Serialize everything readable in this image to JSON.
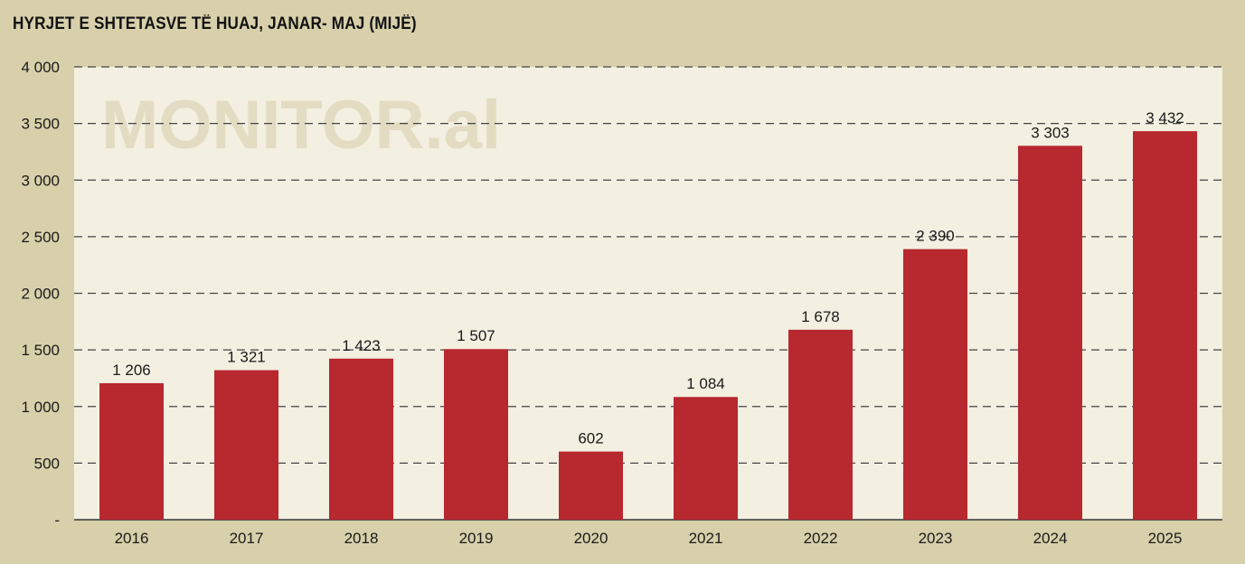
{
  "chart_data": {
    "type": "bar",
    "title": "HYRJET E SHTETASVE TË HUAJ, JANAR- MAJ (MIJË)",
    "watermark": "MONITOR.al",
    "categories": [
      "2016",
      "2017",
      "2018",
      "2019",
      "2020",
      "2021",
      "2022",
      "2023",
      "2024",
      "2025"
    ],
    "values": [
      1206,
      1321,
      1423,
      1507,
      602,
      1084,
      1678,
      2390,
      3303,
      3432
    ],
    "value_labels": [
      "1 206",
      "1 321",
      "1 423",
      "1 507",
      "602",
      "1 084",
      "1 678",
      "2 390",
      "3 303",
      "3 432"
    ],
    "y_ticks": [
      0,
      500,
      1000,
      1500,
      2000,
      2500,
      3000,
      3500,
      4000
    ],
    "y_tick_labels": [
      "-",
      "500",
      "1 000",
      "1 500",
      "2 000",
      "2 500",
      "3 000",
      "3 500",
      "4 000"
    ],
    "ylim": [
      0,
      4000
    ],
    "xlabel": "",
    "ylabel": "",
    "grid": true,
    "colors": {
      "bar": "#b8282f",
      "plot_background": "#f3efe1",
      "page_background": "#d8d0aa",
      "grid": "#444444"
    }
  }
}
